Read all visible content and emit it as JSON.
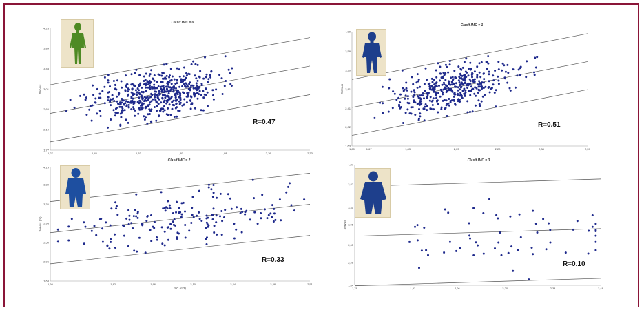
{
  "chart_data": [
    {
      "type": "scatter",
      "title": "Clasif IMC = 0",
      "ylabel": "Servus",
      "xlabel": "",
      "r_label": "R=0.47",
      "figure_icon": "slim-person-icon",
      "figure_color": "#4e8a24",
      "xticks": [
        "1,27",
        "1,45",
        "1,63",
        "1,80",
        "1,98",
        "2,16",
        "2,33"
      ],
      "yticks": [
        "1,77",
        "2,19",
        "2,60",
        "3,01",
        "3,43",
        "3,84",
        "4,25"
      ],
      "regression": {
        "start": 2.52,
        "end": 3.48,
        "band_offset": 0.58
      },
      "n_points": 560,
      "x_center": 1.7,
      "x_spread": 0.12,
      "noise": 0.22,
      "seed": 11
    },
    {
      "type": "scatter",
      "title": "Clasif IMC = 1",
      "ylabel": "Servus",
      "xlabel": "",
      "r_label": "R=0.51",
      "figure_icon": "average-person-icon",
      "figure_color": "#1e3f8c",
      "xticks": [
        "1,60",
        "1,67",
        "1,83",
        "2,03",
        "2,20",
        "2,38",
        "2,57"
      ],
      "yticks": [
        "1,63",
        "2,02",
        "2,41",
        "2,81",
        "3,20",
        "3,59",
        "4,00"
      ],
      "regression": {
        "start": 2.43,
        "end": 3.38,
        "band_offset": 0.58
      },
      "n_points": 430,
      "x_center": 2.02,
      "x_spread": 0.13,
      "noise": 0.24,
      "seed": 23
    },
    {
      "type": "scatter",
      "title": "Clasif IMC = 2",
      "ylabel": "Servus (m)",
      "xlabel": "SC (m2)",
      "r_label": "R=0.33",
      "figure_icon": "overweight-person-icon",
      "figure_color": "#1e4fa0",
      "xticks": [
        "1,60",
        "1,82",
        "1,96",
        "2,10",
        "2,24",
        "2,38",
        "2,51"
      ],
      "yticks": [
        "1,63",
        "2,06",
        "2,50",
        "2,93",
        "3,36",
        "3,80",
        "4,19"
      ],
      "regression": {
        "start": 2.72,
        "end": 3.36,
        "band_offset": 0.7
      },
      "n_points": 190,
      "x_center": 2.07,
      "x_spread": 0.18,
      "noise": 0.33,
      "seed": 37
    },
    {
      "type": "scatter",
      "title": "Clasif IMC = 3",
      "ylabel": "Servus",
      "xlabel": "",
      "r_label": "R=0.10",
      "figure_icon": "obese-person-icon",
      "figure_color": "#1e3f8c",
      "xticks": [
        "1,76",
        "1,93",
        "2,06",
        "2,20",
        "2,34",
        "2,48"
      ],
      "yticks": [
        "1,84",
        "2,29",
        "2,65",
        "3,06",
        "3,40",
        "3,87",
        "4,27"
      ],
      "regression": {
        "start": 2.83,
        "end": 2.98,
        "band_offset": 1.0
      },
      "n_points": 62,
      "x_center": 2.2,
      "x_spread": 0.17,
      "noise": 0.36,
      "seed": 53
    }
  ]
}
